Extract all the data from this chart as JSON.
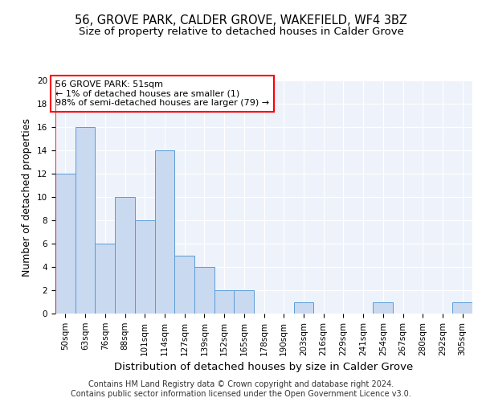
{
  "title": "56, GROVE PARK, CALDER GROVE, WAKEFIELD, WF4 3BZ",
  "subtitle": "Size of property relative to detached houses in Calder Grove",
  "xlabel": "Distribution of detached houses by size in Calder Grove",
  "ylabel": "Number of detached properties",
  "categories": [
    "50sqm",
    "63sqm",
    "76sqm",
    "88sqm",
    "101sqm",
    "114sqm",
    "127sqm",
    "139sqm",
    "152sqm",
    "165sqm",
    "178sqm",
    "190sqm",
    "203sqm",
    "216sqm",
    "229sqm",
    "241sqm",
    "254sqm",
    "267sqm",
    "280sqm",
    "292sqm",
    "305sqm"
  ],
  "values": [
    12,
    16,
    6,
    10,
    8,
    14,
    5,
    4,
    2,
    2,
    0,
    0,
    1,
    0,
    0,
    0,
    1,
    0,
    0,
    0,
    1
  ],
  "bar_color": "#c9d9f0",
  "bar_edge_color": "#5b9bd5",
  "annotation_box_text": "56 GROVE PARK: 51sqm\n← 1% of detached houses are smaller (1)\n98% of semi-detached houses are larger (79) →",
  "annotation_box_color": "#ffffff",
  "annotation_box_edge_color": "#ff0000",
  "marker_line_color": "#ff0000",
  "ylim": [
    0,
    20
  ],
  "yticks": [
    0,
    2,
    4,
    6,
    8,
    10,
    12,
    14,
    16,
    18,
    20
  ],
  "background_color": "#eef3fb",
  "grid_color": "#ffffff",
  "footer_line1": "Contains HM Land Registry data © Crown copyright and database right 2024.",
  "footer_line2": "Contains public sector information licensed under the Open Government Licence v3.0.",
  "title_fontsize": 10.5,
  "subtitle_fontsize": 9.5,
  "xlabel_fontsize": 9.5,
  "ylabel_fontsize": 9,
  "tick_fontsize": 7.5,
  "footer_fontsize": 7,
  "annotation_fontsize": 8
}
